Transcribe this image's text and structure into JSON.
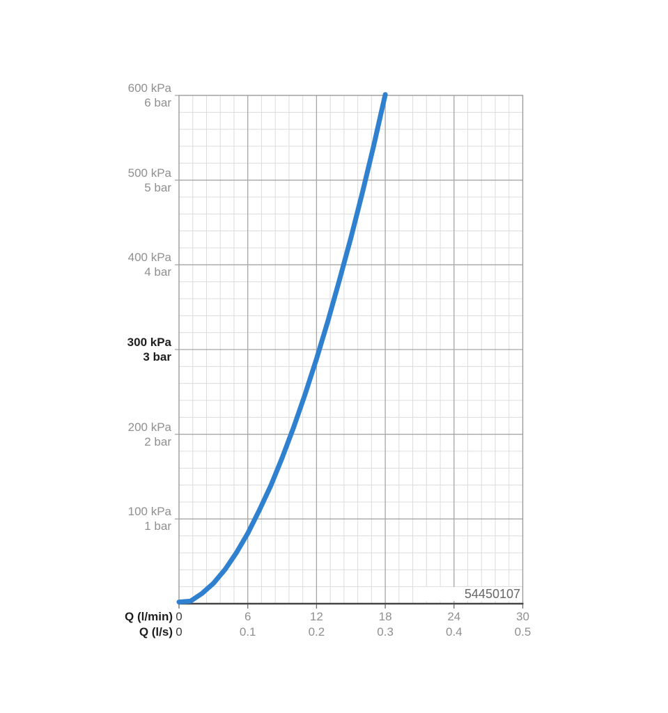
{
  "page": {
    "background": "#ffffff"
  },
  "chart_data": {
    "type": "line",
    "title": "",
    "product_code": "54450107",
    "x_axis_primary": {
      "label": "Q (l/min)",
      "min": 0,
      "max": 30,
      "major_step": 6,
      "minor_step": 1.2,
      "ticks": [
        "0",
        "6",
        "12",
        "18",
        "24",
        "30"
      ],
      "tick_values": [
        0,
        6,
        12,
        18,
        24,
        30
      ]
    },
    "x_axis_secondary": {
      "label": "Q (l/s)",
      "ticks": [
        "0",
        "0.1",
        "0.2",
        "0.3",
        "0.4",
        "0.5"
      ]
    },
    "y_axis": {
      "unit_primary": "kPa",
      "unit_secondary": "bar",
      "min": 0,
      "max": 600,
      "major_step": 100,
      "minor_step": 20,
      "tick_labels": [
        {
          "kpa": "600 kPa",
          "bar": "6 bar",
          "value": 600,
          "bold": false
        },
        {
          "kpa": "500 kPa",
          "bar": "5 bar",
          "value": 500,
          "bold": false
        },
        {
          "kpa": "400 kPa",
          "bar": "4 bar",
          "value": 400,
          "bold": false
        },
        {
          "kpa": "300 kPa",
          "bar": "3 bar",
          "value": 300,
          "bold": true
        },
        {
          "kpa": "200 kPa",
          "bar": "2 bar",
          "value": 200,
          "bold": false
        },
        {
          "kpa": "100 kPa",
          "bar": "1 bar",
          "value": 100,
          "bold": false
        }
      ]
    },
    "series": [
      {
        "name": "pressure-flow-curve",
        "color": "#2f80cf",
        "stroke_width": 7,
        "points_q_lmin_p_kpa": [
          [
            0,
            2
          ],
          [
            1,
            3
          ],
          [
            2,
            12
          ],
          [
            3,
            24
          ],
          [
            4,
            40
          ],
          [
            5,
            60
          ],
          [
            6,
            83
          ],
          [
            7,
            110
          ],
          [
            8,
            139
          ],
          [
            9,
            172
          ],
          [
            10,
            208
          ],
          [
            11,
            247
          ],
          [
            12,
            289
          ],
          [
            13,
            334
          ],
          [
            14,
            382
          ],
          [
            15,
            432
          ],
          [
            16,
            485
          ],
          [
            17,
            541
          ],
          [
            18,
            601
          ]
        ]
      }
    ],
    "grid": {
      "minor_color": "#dcdcdc",
      "major_color": "#a6a6a6",
      "border_color": "#9b9b9b",
      "axis_color": "#454545",
      "tick_color": "#6a6a6a"
    },
    "text_colors": {
      "gray": "#8f8f8f",
      "dark": "#3b3b3b",
      "black": "#1d1d1d",
      "code": "#666666"
    },
    "legend": {
      "visible": false
    },
    "grid_on": true
  }
}
